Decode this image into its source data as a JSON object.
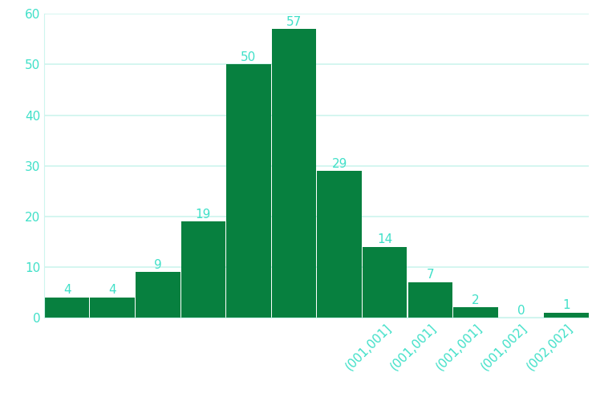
{
  "chart_data": {
    "type": "bar",
    "categories": [
      null,
      null,
      null,
      null,
      null,
      null,
      null,
      "(001,001]",
      "(001,001]",
      "(001,001]",
      "(001,002]",
      "(002,002]"
    ],
    "values": [
      4,
      4,
      9,
      19,
      50,
      57,
      29,
      14,
      7,
      2,
      0,
      1
    ],
    "color": "#07803f",
    "ylim": [
      0,
      60
    ],
    "yticks": [
      0,
      10,
      20,
      30,
      40,
      50,
      60
    ],
    "grid": true,
    "data_labels": true
  }
}
